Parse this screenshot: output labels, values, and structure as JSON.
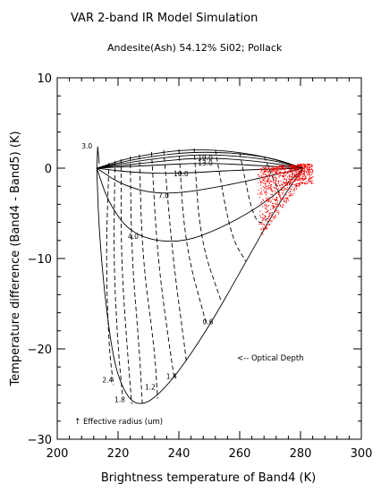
{
  "chart_data": {
    "type": "scatter",
    "title": "VAR 2-band IR Model Simulation",
    "subtitle": "Andesite(Ash) 54.12% Si02; Pollack",
    "xlabel": "Brightness temperature of Band4 (K)",
    "ylabel": "Temperature difference (Band4 - Band5) (K)",
    "xlim": [
      200,
      300
    ],
    "ylim": [
      -30,
      10
    ],
    "xticks": [
      "200",
      "220",
      "240",
      "260",
      "280",
      "300"
    ],
    "yticks": [
      "10",
      "0",
      "−10",
      "−20",
      "−30"
    ],
    "grid": false,
    "radius_curves": [
      {
        "label": "3.0",
        "points": [
          [
            213,
            0
          ],
          [
            225,
            1.3
          ],
          [
            245,
            2.2
          ],
          [
            265,
            1.6
          ],
          [
            281,
            0
          ]
        ]
      },
      {
        "label": "",
        "points": [
          [
            213,
            0
          ],
          [
            228,
            1.2
          ],
          [
            247,
            1.9
          ],
          [
            268,
            1.4
          ],
          [
            281,
            0
          ]
        ]
      },
      {
        "label": "",
        "points": [
          [
            213,
            0
          ],
          [
            230,
            1.0
          ],
          [
            248,
            1.6
          ],
          [
            268,
            1.1
          ],
          [
            281,
            0
          ]
        ]
      },
      {
        "label": "19.0",
        "points": [
          [
            213,
            0
          ],
          [
            232,
            0.7
          ],
          [
            248,
            1.2
          ],
          [
            266,
            0.8
          ],
          [
            281,
            0
          ]
        ]
      },
      {
        "label": "13.0",
        "points": [
          [
            213,
            0
          ],
          [
            230,
            0.3
          ],
          [
            248,
            0.6
          ],
          [
            266,
            0.3
          ],
          [
            281,
            0
          ]
        ]
      },
      {
        "label": "10.0",
        "points": [
          [
            213,
            0
          ],
          [
            225,
            -0.5
          ],
          [
            240,
            -0.6
          ],
          [
            260,
            -0.2
          ],
          [
            281,
            0
          ]
        ]
      },
      {
        "label": "7.0",
        "points": [
          [
            213,
            0
          ],
          [
            222,
            -2.0
          ],
          [
            235,
            -3.0
          ],
          [
            255,
            -2.0
          ],
          [
            281,
            0
          ]
        ]
      },
      {
        "label": "4.0",
        "points": [
          [
            213,
            0
          ],
          [
            217,
            -4.0
          ],
          [
            225,
            -7.5
          ],
          [
            240,
            -8.4
          ],
          [
            255,
            -6.5
          ],
          [
            270,
            -3.5
          ],
          [
            281,
            0
          ]
        ]
      },
      {
        "label": "",
        "points": [
          [
            213,
            0
          ],
          [
            213.5,
            -5
          ],
          [
            214.5,
            -10
          ],
          [
            216,
            -15
          ],
          [
            217.5,
            -19
          ],
          [
            219.5,
            -22.5
          ],
          [
            222.5,
            -25
          ],
          [
            226,
            -26.2
          ],
          [
            231,
            -25.8
          ],
          [
            239,
            -23.0
          ],
          [
            250,
            -17.5
          ],
          [
            261,
            -11
          ],
          [
            271,
            -5
          ],
          [
            277,
            -1.8
          ],
          [
            281,
            0
          ]
        ]
      }
    ],
    "radius_labels": [
      {
        "text": "2.4",
        "x": 216,
        "y": -23.7
      },
      {
        "text": "1.8",
        "x": 220,
        "y": -25.9
      },
      {
        "text": "1.2",
        "x": 230,
        "y": -24.5
      },
      {
        "text": "1.4",
        "x": 237,
        "y": -23.3
      },
      {
        "text": "0.6",
        "x": 249,
        "y": -17.3
      }
    ],
    "optical_depth_lines": [
      [
        [
          217,
          0.6
        ],
        [
          216,
          -10
        ],
        [
          217,
          -20
        ],
        [
          218.5,
          -24
        ]
      ],
      [
        [
          219,
          0.8
        ],
        [
          218.5,
          -10
        ],
        [
          220,
          -20
        ],
        [
          221.5,
          -25.3
        ]
      ],
      [
        [
          221,
          1.0
        ],
        [
          221,
          -10
        ],
        [
          223,
          -20
        ],
        [
          224.5,
          -26.1
        ]
      ],
      [
        [
          224,
          1.3
        ],
        [
          224.5,
          -10
        ],
        [
          227,
          -20
        ],
        [
          228,
          -26.2
        ]
      ],
      [
        [
          227,
          1.5
        ],
        [
          228,
          -10
        ],
        [
          232,
          -20
        ],
        [
          233,
          -25.5
        ]
      ],
      [
        [
          231,
          1.8
        ],
        [
          233,
          -10
        ],
        [
          237,
          -20
        ],
        [
          238.5,
          -23.3
        ]
      ],
      [
        [
          235,
          2.0
        ],
        [
          238,
          -10
        ],
        [
          242,
          -20
        ],
        [
          242.5,
          -21.5
        ]
      ],
      [
        [
          240,
          2.1
        ],
        [
          242,
          -8.5
        ],
        [
          249,
          -17.2
        ]
      ],
      [
        [
          245,
          2.2
        ],
        [
          247,
          -8
        ],
        [
          254,
          -14.8
        ]
      ],
      [
        [
          252,
          2.0
        ],
        [
          257,
          -7.5
        ],
        [
          262,
          -10.3
        ]
      ],
      [
        [
          260,
          1.7
        ],
        [
          265,
          -6.5
        ],
        [
          270,
          -5.4
        ]
      ],
      [
        [
          268,
          1.3
        ],
        [
          273,
          -2.8
        ]
      ]
    ],
    "observed_pixels": {
      "color": "#ff0000",
      "x_range": [
        265,
        284
      ],
      "y_range": [
        -7.5,
        0.5
      ],
      "centroid": [
        275,
        -1.5
      ]
    },
    "annotations": {
      "optical_depth": "<-- Optical Depth",
      "effective_radius": "Effective radius (um)"
    }
  }
}
